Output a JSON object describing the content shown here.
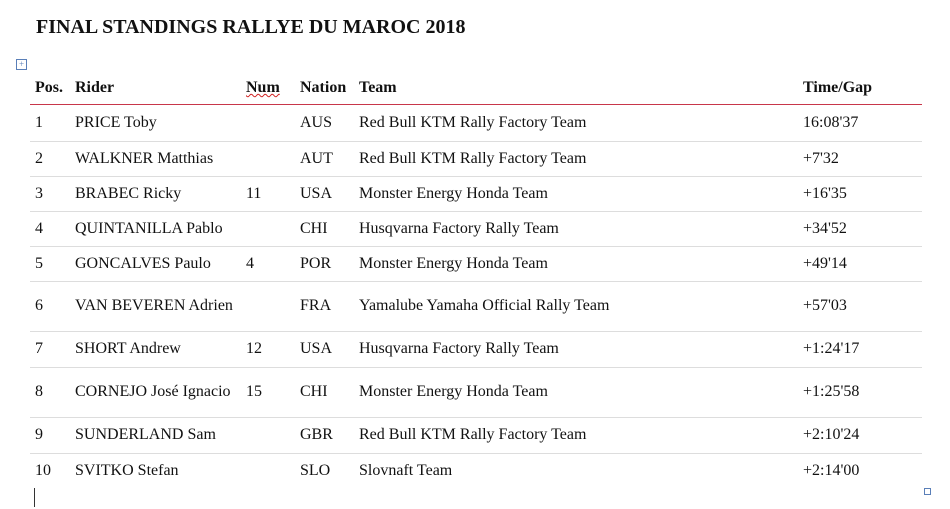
{
  "header": {
    "title": "FINAL STANDINGS RALLYE DU MAROC 2018"
  },
  "table": {
    "columns": [
      "Pos.",
      "Rider",
      "Num",
      "Nation",
      "Team",
      "Time/Gap"
    ],
    "rows": [
      [
        "1",
        "PRICE Toby",
        null,
        "AUS",
        "Red Bull KTM Rally Factory Team",
        "16:08'37"
      ],
      [
        "2",
        "WALKNER Matthias",
        null,
        "AUT",
        "Red Bull KTM Rally Factory Team",
        "+7'32"
      ],
      [
        "3",
        "BRABEC Ricky",
        "11",
        "USA",
        "Monster Energy Honda Team",
        "+16'35"
      ],
      [
        "4",
        "QUINTANILLA Pablo",
        null,
        "CHI",
        "Husqvarna Factory Rally Team",
        "+34'52"
      ],
      [
        "5",
        "GONCALVES Paulo",
        "4",
        "POR",
        "Monster Energy Honda Team",
        "+49'14"
      ],
      [
        "6",
        "VAN BEVEREN Adrien",
        null,
        "FRA",
        "Yamalube Yamaha Official Rally Team",
        "+57'03"
      ],
      [
        "7",
        "SHORT Andrew",
        "12",
        "USA",
        "Husqvarna Factory Rally Team",
        "+1:24'17"
      ],
      [
        "8",
        "CORNEJO José Ignacio",
        "15",
        "CHI",
        "Monster Energy Honda Team",
        "+1:25'58"
      ],
      [
        "9",
        "SUNDERLAND Sam",
        null,
        "GBR",
        "Red Bull KTM Rally Factory Team",
        "+2:10'24"
      ],
      [
        "10",
        "SVITKO Stefan",
        null,
        "SLO",
        "Slovnaft Team",
        "+2:14'00"
      ]
    ]
  }
}
